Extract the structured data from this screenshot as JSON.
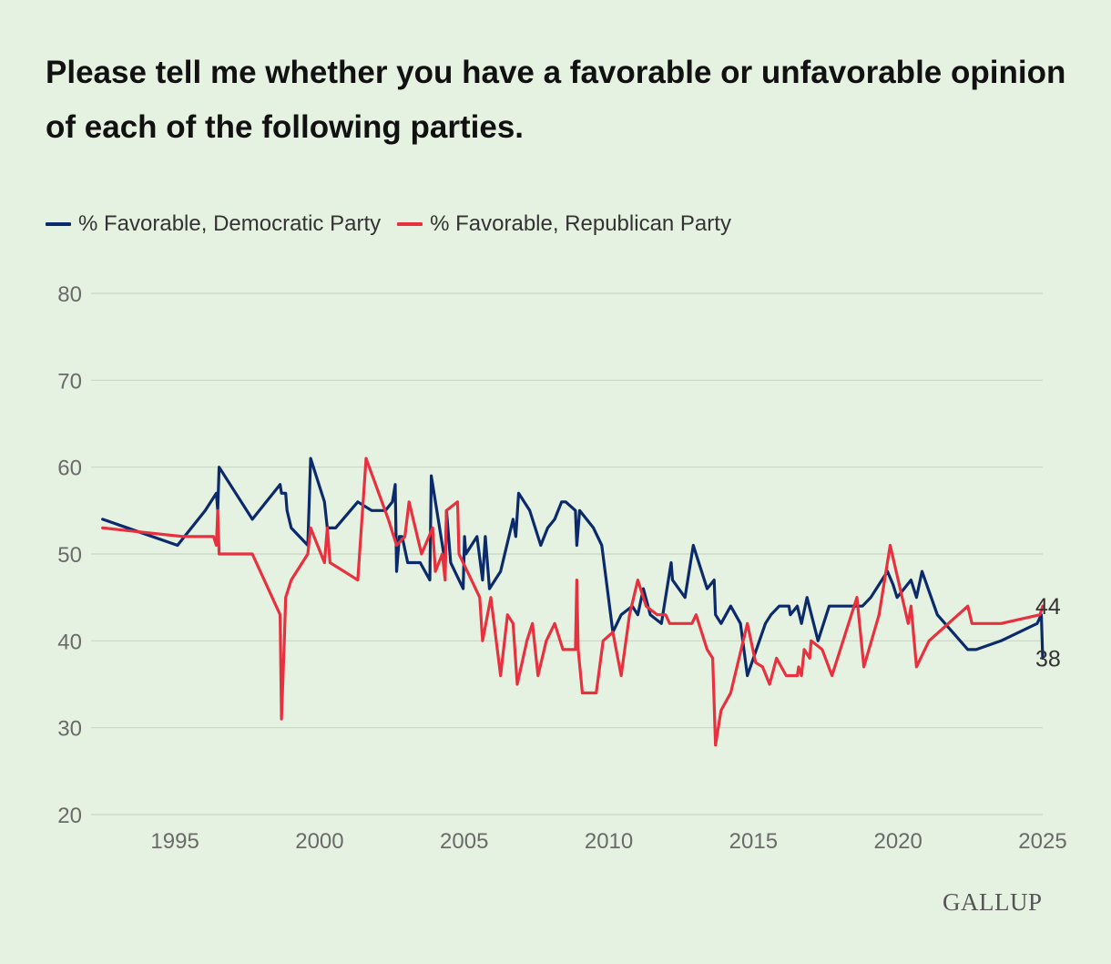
{
  "colors": {
    "background": "#e6f2e1",
    "grid": "#c9d6c4",
    "tick_text": "#6a6a6a",
    "end_label_text": "#333333"
  },
  "brand": "GALLUP",
  "chart_data": {
    "type": "line",
    "title": "Please tell me whether you have a favorable or unfavorable opinion of each of the following parties.",
    "xlabel": "",
    "ylabel": "",
    "xlim": [
      1992.1,
      2025
    ],
    "ylim": [
      20,
      80
    ],
    "x_ticks": [
      1995,
      2000,
      2005,
      2010,
      2015,
      2020,
      2025
    ],
    "y_ticks": [
      20,
      30,
      40,
      50,
      60,
      70,
      80
    ],
    "grid": true,
    "legend_position": "top-left",
    "series": [
      {
        "name": "% Favorable, Democratic Party",
        "color": "#0b2a6b",
        "end_label": "38",
        "points": [
          [
            1992.5,
            54
          ],
          [
            1995.2,
            51
          ],
          [
            1996.2,
            55
          ],
          [
            1996.6,
            57
          ],
          [
            1996.65,
            55
          ],
          [
            1996.7,
            60
          ],
          [
            1997.9,
            54
          ],
          [
            1998.9,
            58
          ],
          [
            1998.95,
            57
          ],
          [
            1999.1,
            57
          ],
          [
            1999.15,
            55
          ],
          [
            1999.3,
            53
          ],
          [
            1999.9,
            51
          ],
          [
            2000.0,
            61
          ],
          [
            2000.5,
            56
          ],
          [
            2000.6,
            53
          ],
          [
            2000.9,
            53
          ],
          [
            2001.7,
            56
          ],
          [
            2002.2,
            55
          ],
          [
            2002.7,
            55
          ],
          [
            2002.95,
            56
          ],
          [
            2003.05,
            58
          ],
          [
            2003.1,
            48
          ],
          [
            2003.2,
            52
          ],
          [
            2003.3,
            52
          ],
          [
            2003.5,
            49
          ],
          [
            2003.95,
            49
          ],
          [
            2004.3,
            47
          ],
          [
            2004.35,
            59
          ],
          [
            2004.8,
            50
          ],
          [
            2004.85,
            48
          ],
          [
            2004.9,
            55
          ],
          [
            2005.05,
            49
          ],
          [
            2005.5,
            46
          ],
          [
            2005.55,
            52
          ],
          [
            2005.6,
            50
          ],
          [
            2006.0,
            52
          ],
          [
            2006.2,
            47
          ],
          [
            2006.3,
            52
          ],
          [
            2006.45,
            46
          ],
          [
            2006.85,
            48
          ],
          [
            2007.3,
            54
          ],
          [
            2007.4,
            52
          ],
          [
            2007.5,
            57
          ],
          [
            2007.9,
            55
          ],
          [
            2008.3,
            51
          ],
          [
            2008.55,
            53
          ],
          [
            2008.8,
            54
          ],
          [
            2009.05,
            56
          ],
          [
            2009.2,
            56
          ],
          [
            2009.55,
            55
          ],
          [
            2009.6,
            51
          ],
          [
            2009.7,
            55
          ],
          [
            2010.2,
            53
          ],
          [
            2010.5,
            51
          ],
          [
            2010.9,
            41
          ],
          [
            2011.2,
            43
          ],
          [
            2011.6,
            44
          ],
          [
            2011.8,
            43
          ],
          [
            2012.0,
            46
          ],
          [
            2012.25,
            43
          ],
          [
            2012.65,
            42
          ],
          [
            2013.0,
            49
          ],
          [
            2013.05,
            47
          ],
          [
            2013.5,
            45
          ],
          [
            2013.8,
            51
          ],
          [
            2014.3,
            46
          ],
          [
            2014.55,
            47
          ],
          [
            2014.6,
            43
          ],
          [
            2014.8,
            42
          ],
          [
            2015.15,
            44
          ],
          [
            2015.5,
            42
          ],
          [
            2015.75,
            36
          ],
          [
            2016.4,
            42
          ],
          [
            2016.6,
            43
          ],
          [
            2016.9,
            44
          ],
          [
            2017.25,
            44
          ],
          [
            2017.3,
            43
          ],
          [
            2017.55,
            44
          ],
          [
            2017.7,
            42
          ],
          [
            2017.9,
            45
          ],
          [
            2018.3,
            40
          ],
          [
            2018.7,
            44
          ],
          [
            2019.9,
            44
          ],
          [
            2020.2,
            45
          ],
          [
            2020.8,
            48
          ],
          [
            2021.0,
            46.5
          ],
          [
            2021.15,
            45
          ],
          [
            2021.65,
            47
          ],
          [
            2021.85,
            45
          ],
          [
            2022.05,
            48
          ],
          [
            2022.6,
            43
          ],
          [
            2023.7,
            39
          ],
          [
            2024.0,
            39
          ],
          [
            2024.9,
            40
          ],
          [
            2026.2,
            42
          ],
          [
            2026.35,
            43
          ],
          [
            2026.4,
            38
          ]
        ]
      },
      {
        "name": "% Favorable, Republican Party",
        "color": "#e8303e",
        "end_label": "44",
        "points": [
          [
            1992.5,
            53
          ],
          [
            1995.4,
            52
          ],
          [
            1996.5,
            52
          ],
          [
            1996.6,
            51
          ],
          [
            1996.65,
            55
          ],
          [
            1996.7,
            50
          ],
          [
            1997.9,
            50
          ],
          [
            1998.9,
            43
          ],
          [
            1998.95,
            31
          ],
          [
            1999.05,
            40
          ],
          [
            1999.1,
            45
          ],
          [
            1999.3,
            47
          ],
          [
            1999.9,
            50
          ],
          [
            2000.0,
            53
          ],
          [
            2000.5,
            49
          ],
          [
            2000.6,
            53
          ],
          [
            2000.7,
            49
          ],
          [
            2001.7,
            47
          ],
          [
            2002.0,
            61
          ],
          [
            2002.8,
            54
          ],
          [
            2003.1,
            51
          ],
          [
            2003.4,
            52
          ],
          [
            2003.55,
            56
          ],
          [
            2004.0,
            50
          ],
          [
            2004.4,
            53
          ],
          [
            2004.5,
            48
          ],
          [
            2004.75,
            50
          ],
          [
            2004.85,
            47
          ],
          [
            2004.9,
            55
          ],
          [
            2005.3,
            56
          ],
          [
            2005.35,
            50
          ],
          [
            2005.8,
            47
          ],
          [
            2006.1,
            45
          ],
          [
            2006.2,
            40
          ],
          [
            2006.5,
            45
          ],
          [
            2006.85,
            36
          ],
          [
            2007.1,
            43
          ],
          [
            2007.3,
            42
          ],
          [
            2007.45,
            35
          ],
          [
            2007.8,
            40
          ],
          [
            2008.0,
            42
          ],
          [
            2008.2,
            36
          ],
          [
            2008.5,
            40
          ],
          [
            2008.8,
            42
          ],
          [
            2009.1,
            39
          ],
          [
            2009.55,
            39
          ],
          [
            2009.6,
            47
          ],
          [
            2009.65,
            39
          ],
          [
            2009.8,
            34
          ],
          [
            2010.3,
            34
          ],
          [
            2010.55,
            40
          ],
          [
            2010.9,
            41
          ],
          [
            2011.2,
            36
          ],
          [
            2011.5,
            43
          ],
          [
            2011.8,
            47
          ],
          [
            2012.1,
            44
          ],
          [
            2012.5,
            43
          ],
          [
            2012.8,
            43
          ],
          [
            2012.95,
            42
          ],
          [
            2013.7,
            42
          ],
          [
            2013.75,
            42
          ],
          [
            2013.9,
            43
          ],
          [
            2014.3,
            39
          ],
          [
            2014.5,
            38
          ],
          [
            2014.6,
            28
          ],
          [
            2014.8,
            32
          ],
          [
            2015.15,
            34
          ],
          [
            2015.75,
            42
          ],
          [
            2016.05,
            37.5
          ],
          [
            2016.3,
            37
          ],
          [
            2016.55,
            35
          ],
          [
            2016.8,
            38
          ],
          [
            2017.15,
            36
          ],
          [
            2017.55,
            36
          ],
          [
            2017.6,
            37
          ],
          [
            2017.7,
            36
          ],
          [
            2017.8,
            39
          ],
          [
            2018.0,
            38
          ],
          [
            2018.05,
            40
          ],
          [
            2018.45,
            39
          ],
          [
            2018.8,
            36
          ],
          [
            2019.7,
            45
          ],
          [
            2019.95,
            37
          ],
          [
            2020.5,
            43
          ],
          [
            2020.9,
            51
          ],
          [
            2021.55,
            42
          ],
          [
            2021.65,
            44
          ],
          [
            2021.85,
            37
          ],
          [
            2022.3,
            40
          ],
          [
            2023.7,
            44
          ],
          [
            2023.85,
            42
          ],
          [
            2024.9,
            42
          ],
          [
            2026.3,
            43
          ],
          [
            2026.4,
            44
          ]
        ]
      }
    ]
  }
}
